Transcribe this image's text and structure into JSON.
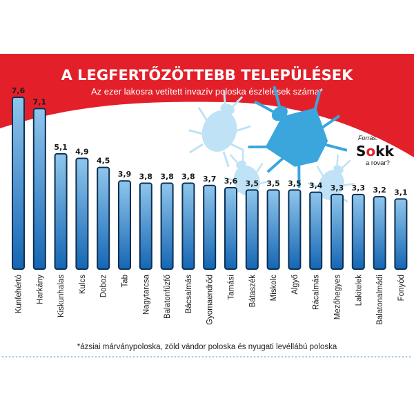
{
  "colors": {
    "banner": "#e3202a",
    "bar_top": "#8fc6ec",
    "bar_bottom": "#1566b4",
    "bar_outline": "#0d2f52",
    "bug_light": "#bfe2f6",
    "bug_dark": "#3aa6dc",
    "dots": "#a9cbe8"
  },
  "logo": {
    "kicker": "Forrás:",
    "word_part1": "S",
    "word_o": "o",
    "word_part2": "kk",
    "tagline": "a rovar?"
  },
  "chart_data": {
    "type": "bar",
    "title": "A LEGFERTŐZÖTTEBB TELEPÜLÉSEK",
    "subtitle": "Az ezer lakosra vetített invazív poloska észlelések száma*",
    "categories": [
      "Kunfehértó",
      "Harkány",
      "Kiskunhalas",
      "Kulcs",
      "Doboz",
      "Tab",
      "Nagytarcsa",
      "Balatonfűzfő",
      "Bácsalmás",
      "Gyomaendrőd",
      "Tamási",
      "Bátaszék",
      "Miskolc",
      "Algyő",
      "Rácalmás",
      "Mezőhegyes",
      "Lakitelek",
      "Balatonalmádi",
      "Fonyód"
    ],
    "values": [
      7.6,
      7.1,
      5.1,
      4.9,
      4.5,
      3.9,
      3.8,
      3.8,
      3.8,
      3.7,
      3.6,
      3.5,
      3.5,
      3.5,
      3.4,
      3.3,
      3.3,
      3.2,
      3.1
    ],
    "value_labels": [
      "7,6",
      "7,1",
      "5,1",
      "4,9",
      "4,5",
      "3,9",
      "3,8",
      "3,8",
      "3,8",
      "3,7",
      "3,6",
      "3,5",
      "3,5",
      "3,5",
      "3,4",
      "3,3",
      "3,3",
      "3,2",
      "3,1"
    ],
    "ylim": [
      0,
      7.6
    ],
    "grid": false,
    "legend": "none",
    "footnote": "*ázsiai márványpoloska, zöld vándor poloska és nyugati levéllábú poloska"
  }
}
